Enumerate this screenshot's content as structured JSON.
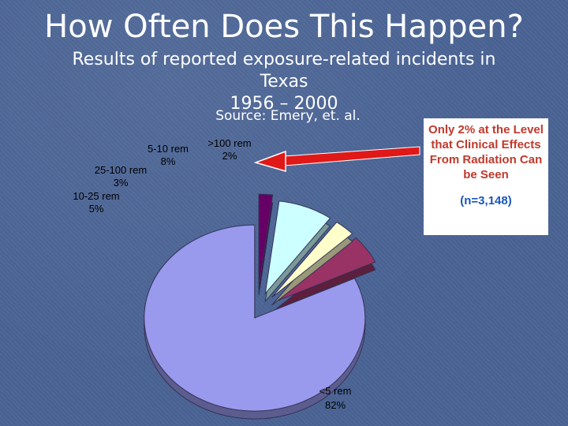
{
  "slide": {
    "title": "How Often Does This Happen?",
    "subtitle_line1": "Results of reported exposure-related incidents in Texas",
    "subtitle_line2": "1956 – 2000",
    "source": "Source: Emery, et. al."
  },
  "callout": {
    "text": "Only 2% at the Level that Clinical Effects From Radiation Can be Seen",
    "n": "(n=3,148)"
  },
  "colors": {
    "arrow": "#e01818",
    "callout_text": "#c0392b",
    "callout_n": "#1a56b8"
  },
  "chart_data": {
    "type": "pie",
    "style": "3d-exploded",
    "categories": [
      "<5 rem",
      "10-25 rem",
      "25-100 rem",
      "5-10 rem",
      ">100 rem"
    ],
    "values": [
      82,
      5,
      3,
      8,
      2
    ],
    "labels": [
      {
        "name": "<5 rem",
        "value": "82%"
      },
      {
        "name": "10-25 rem",
        "value": "5%"
      },
      {
        "name": "25-100 rem",
        "value": "3%"
      },
      {
        "name": "5-10 rem",
        "value": "8%"
      },
      {
        "name": ">100 rem",
        "value": "2%"
      }
    ],
    "colors": [
      "#9999ee",
      "#993366",
      "#ffffcc",
      "#ccffff",
      "#660066"
    ]
  }
}
